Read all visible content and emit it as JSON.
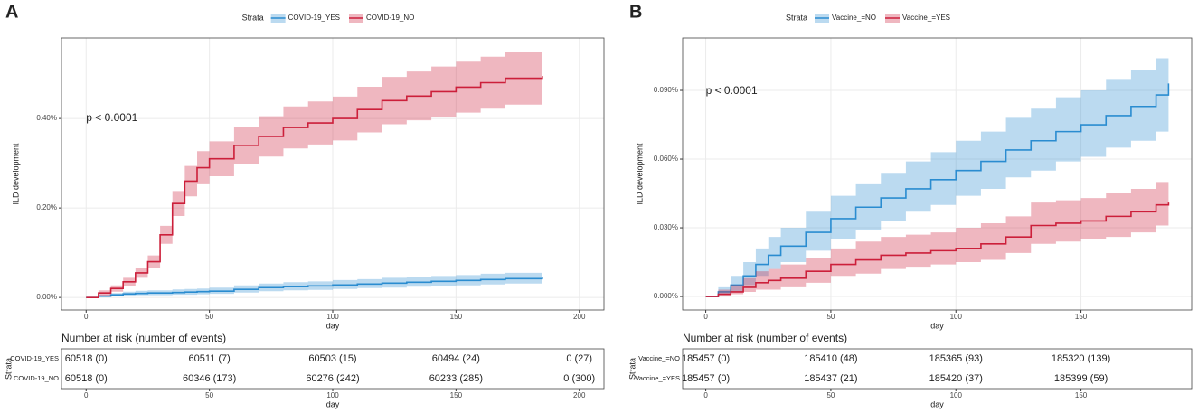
{
  "chart_data": [
    {
      "type": "line",
      "step": true,
      "panel": "A",
      "legend_title": "Strata",
      "legend_position": "top",
      "grid": true,
      "ylabel": "ILD development",
      "xlabel": "day",
      "annotation": "p < 0.0001",
      "xlim": [
        -10,
        210
      ],
      "ylim": [
        -0.028,
        0.58
      ],
      "xticks": [
        0,
        50,
        100,
        150,
        200
      ],
      "yticks": [
        {
          "value": 0,
          "label": "0.00%"
        },
        {
          "value": 0.2,
          "label": "0.20%"
        },
        {
          "value": 0.4,
          "label": "0.40%"
        }
      ],
      "x": [
        0,
        5,
        10,
        15,
        20,
        25,
        30,
        35,
        40,
        45,
        50,
        60,
        70,
        80,
        90,
        100,
        110,
        120,
        130,
        140,
        150,
        160,
        170,
        185
      ],
      "series": [
        {
          "name": "COVID-19_YES",
          "color": "#2a8cd0",
          "values": [
            0,
            0.003,
            0.006,
            0.008,
            0.009,
            0.01,
            0.01,
            0.011,
            0.012,
            0.013,
            0.014,
            0.018,
            0.022,
            0.024,
            0.026,
            0.028,
            0.03,
            0.032,
            0.034,
            0.036,
            0.038,
            0.04,
            0.042,
            0.045
          ],
          "upper": [
            0,
            0.006,
            0.01,
            0.013,
            0.015,
            0.016,
            0.016,
            0.018,
            0.019,
            0.02,
            0.022,
            0.027,
            0.031,
            0.034,
            0.036,
            0.039,
            0.041,
            0.044,
            0.046,
            0.048,
            0.05,
            0.053,
            0.055,
            0.058
          ],
          "lower": [
            0,
            0.001,
            0.003,
            0.004,
            0.005,
            0.005,
            0.005,
            0.006,
            0.006,
            0.007,
            0.008,
            0.011,
            0.014,
            0.016,
            0.017,
            0.019,
            0.021,
            0.022,
            0.024,
            0.025,
            0.027,
            0.029,
            0.031,
            0.033
          ]
        },
        {
          "name": "COVID-19_NO",
          "color": "#cc1f3a",
          "values": [
            0,
            0.01,
            0.02,
            0.035,
            0.055,
            0.08,
            0.14,
            0.21,
            0.26,
            0.29,
            0.31,
            0.34,
            0.36,
            0.38,
            0.39,
            0.4,
            0.42,
            0.44,
            0.45,
            0.46,
            0.47,
            0.48,
            0.49,
            0.495
          ],
          "upper": [
            0,
            0.016,
            0.027,
            0.044,
            0.066,
            0.094,
            0.16,
            0.238,
            0.294,
            0.327,
            0.349,
            0.382,
            0.405,
            0.427,
            0.438,
            0.449,
            0.471,
            0.493,
            0.505,
            0.516,
            0.527,
            0.538,
            0.549,
            0.555
          ],
          "lower": [
            0,
            0.004,
            0.013,
            0.026,
            0.044,
            0.066,
            0.12,
            0.182,
            0.226,
            0.253,
            0.271,
            0.298,
            0.315,
            0.333,
            0.342,
            0.351,
            0.369,
            0.387,
            0.396,
            0.404,
            0.413,
            0.422,
            0.431,
            0.436
          ]
        }
      ],
      "risk_table": {
        "title": "Number at risk (number of events)",
        "ylabel": "Strata",
        "rows": [
          {
            "name": "COVID-19_YES",
            "color": "#2a8cd0",
            "cells": [
              "60518 (0)",
              "60511 (7)",
              "60503 (15)",
              "60494 (24)",
              "0 (27)"
            ]
          },
          {
            "name": "COVID-19_NO",
            "color": "#cc1f3a",
            "cells": [
              "60518 (0)",
              "60346 (173)",
              "60276 (242)",
              "60233 (285)",
              "0 (300)"
            ]
          }
        ]
      }
    },
    {
      "type": "line",
      "step": true,
      "panel": "B",
      "legend_title": "Strata",
      "legend_position": "top",
      "grid": true,
      "ylabel": "ILD development",
      "xlabel": "day",
      "annotation": "p < 0.0001",
      "xlim": [
        -9.25,
        194.25
      ],
      "ylim": [
        -0.0059,
        0.1129
      ],
      "xticks": [
        0,
        50,
        100,
        150
      ],
      "yticks": [
        {
          "value": 0,
          "label": "0.000%"
        },
        {
          "value": 0.03,
          "label": "0.030%"
        },
        {
          "value": 0.06,
          "label": "0.060%"
        },
        {
          "value": 0.09,
          "label": "0.090%"
        }
      ],
      "x": [
        0,
        5,
        10,
        15,
        20,
        25,
        30,
        40,
        50,
        60,
        70,
        80,
        90,
        100,
        110,
        120,
        130,
        140,
        150,
        160,
        170,
        180,
        185
      ],
      "series": [
        {
          "name": "Vaccine_=NO",
          "color": "#2a8cd0",
          "values": [
            0,
            0.002,
            0.005,
            0.009,
            0.014,
            0.018,
            0.022,
            0.028,
            0.034,
            0.039,
            0.043,
            0.047,
            0.051,
            0.055,
            0.059,
            0.064,
            0.068,
            0.072,
            0.075,
            0.079,
            0.083,
            0.088,
            0.093
          ],
          "upper": [
            0,
            0.004,
            0.009,
            0.015,
            0.021,
            0.026,
            0.03,
            0.037,
            0.044,
            0.049,
            0.054,
            0.059,
            0.063,
            0.068,
            0.072,
            0.078,
            0.082,
            0.087,
            0.09,
            0.095,
            0.099,
            0.104,
            0.107
          ],
          "lower": [
            0,
            0.001,
            0.002,
            0.005,
            0.009,
            0.012,
            0.015,
            0.02,
            0.025,
            0.029,
            0.033,
            0.037,
            0.04,
            0.044,
            0.047,
            0.052,
            0.055,
            0.059,
            0.061,
            0.065,
            0.068,
            0.072,
            0.078
          ]
        },
        {
          "name": "Vaccine_=YES",
          "color": "#cc1f3a",
          "values": [
            0,
            0.001,
            0.002,
            0.004,
            0.006,
            0.007,
            0.008,
            0.011,
            0.014,
            0.016,
            0.018,
            0.019,
            0.02,
            0.021,
            0.023,
            0.026,
            0.031,
            0.032,
            0.033,
            0.035,
            0.037,
            0.04,
            0.041
          ],
          "upper": [
            0,
            0.003,
            0.005,
            0.008,
            0.011,
            0.012,
            0.014,
            0.017,
            0.021,
            0.024,
            0.026,
            0.027,
            0.028,
            0.03,
            0.032,
            0.035,
            0.041,
            0.042,
            0.043,
            0.045,
            0.047,
            0.05,
            0.051
          ],
          "lower": [
            0,
            0,
            0.001,
            0.002,
            0.003,
            0.003,
            0.004,
            0.006,
            0.009,
            0.01,
            0.012,
            0.013,
            0.014,
            0.015,
            0.016,
            0.019,
            0.023,
            0.024,
            0.025,
            0.026,
            0.028,
            0.031,
            0.033
          ]
        }
      ],
      "risk_table": {
        "title": "Number at risk (number of events)",
        "ylabel": "Strata",
        "rows": [
          {
            "name": "Vaccine_=NO",
            "color": "#2a8cd0",
            "cells": [
              "185457 (0)",
              "185410 (48)",
              "185365 (93)",
              "185320 (139)"
            ]
          },
          {
            "name": "Vaccine_=YES",
            "color": "#cc1f3a",
            "cells": [
              "185457 (0)",
              "185437 (21)",
              "185420 (37)",
              "185399 (59)"
            ]
          }
        ]
      }
    }
  ]
}
